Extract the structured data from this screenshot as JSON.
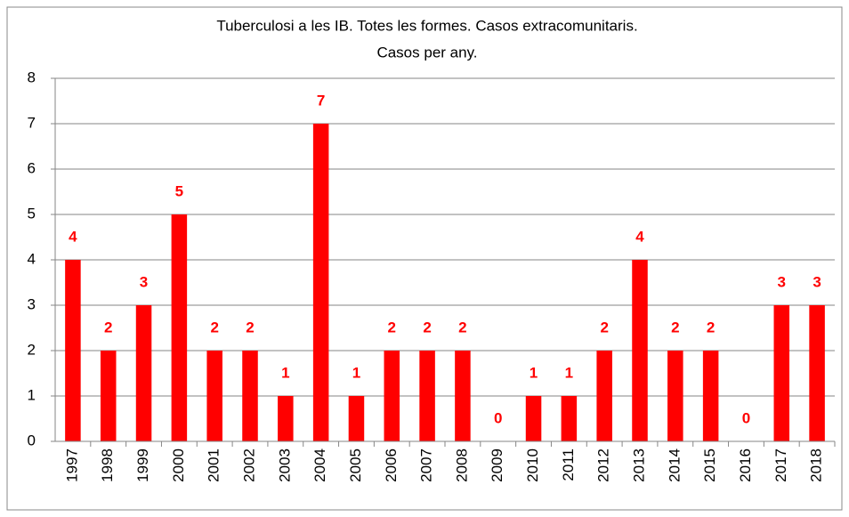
{
  "chart_data": {
    "type": "bar",
    "title": [
      "Tuberculosi a les IB. Totes les formes. Casos  extracomunitaris.",
      "Casos per any."
    ],
    "categories": [
      "1997",
      "1998",
      "1999",
      "2000",
      "2001",
      "2002",
      "2003",
      "2004",
      "2005",
      "2006",
      "2007",
      "2008",
      "2009",
      "2010",
      "2011",
      "2012",
      "2013",
      "2014",
      "2015",
      "2016",
      "2017",
      "2018"
    ],
    "values": [
      4,
      2,
      3,
      5,
      2,
      2,
      1,
      7,
      1,
      2,
      2,
      2,
      0,
      1,
      1,
      2,
      4,
      2,
      2,
      0,
      3,
      3
    ],
    "color": "#ff0000",
    "ylim": [
      0,
      8
    ],
    "yticks": [
      0,
      1,
      2,
      3,
      4,
      5,
      6,
      7,
      8
    ],
    "grid": true
  }
}
